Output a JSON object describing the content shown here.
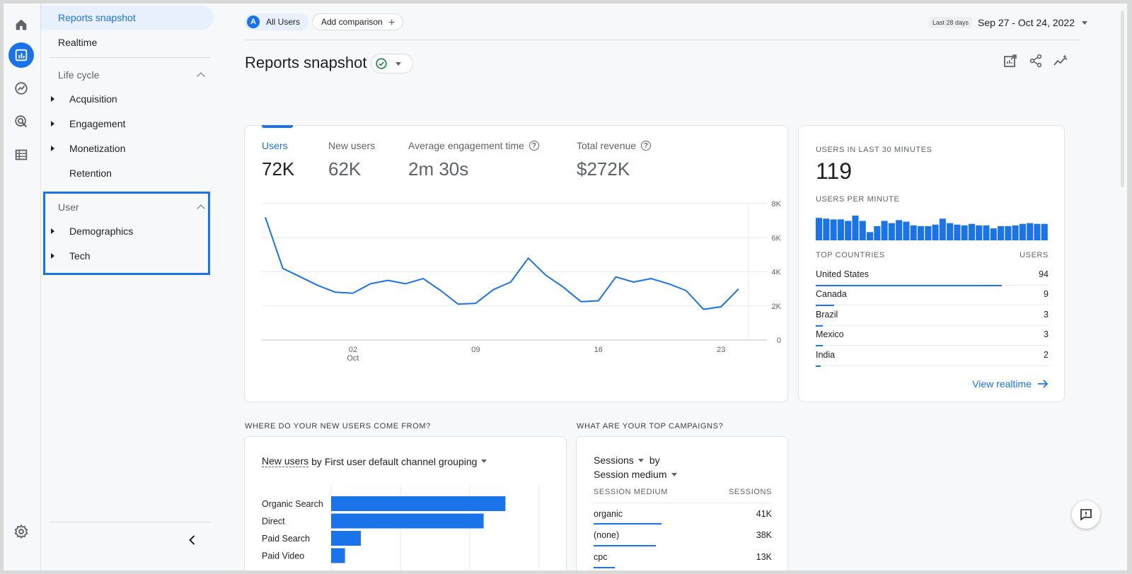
{
  "nav": {
    "reports_snapshot": "Reports snapshot",
    "realtime": "Realtime",
    "lifecycle_group": "Life cycle",
    "lifecycle_items": [
      "Acquisition",
      "Engagement",
      "Monetization",
      "Retention"
    ],
    "user_group": "User",
    "user_items": [
      "Demographics",
      "Tech"
    ]
  },
  "header": {
    "all_users": "All Users",
    "avatar_letter": "A",
    "add_comparison": "Add comparison",
    "date_badge": "Last 28 days",
    "date_range": "Sep 27 - Oct 24, 2022",
    "page_title": "Reports snapshot"
  },
  "metrics": [
    {
      "label": "Users",
      "value": "72K",
      "selected": true
    },
    {
      "label": "New users",
      "value": "62K"
    },
    {
      "label": "Average engagement time",
      "value": "2m 30s",
      "help": true
    },
    {
      "label": "Total revenue",
      "value": "$272K",
      "help": true
    }
  ],
  "chart_data": {
    "type": "line",
    "series": [
      {
        "values": [
          7200,
          4200,
          3700,
          3200,
          2800,
          2750,
          3300,
          3500,
          3300,
          3600,
          2900,
          2100,
          2150,
          2950,
          3400,
          4800,
          3800,
          3100,
          2250,
          2300,
          3700,
          3400,
          3600,
          3300,
          2900,
          1800,
          1950,
          3000
        ]
      }
    ],
    "x_ticks": [
      {
        "index": 5,
        "label": "02",
        "sublabel": "Oct"
      },
      {
        "index": 12,
        "label": "09"
      },
      {
        "index": 19,
        "label": "16"
      },
      {
        "index": 26,
        "label": "23"
      }
    ],
    "y_ticks": [
      "8K",
      "6K",
      "4K",
      "2K",
      "0"
    ],
    "ylim": [
      0,
      8000
    ],
    "color": "#1a73e8"
  },
  "realtime": {
    "users_label": "USERS IN LAST 30 MINUTES",
    "users_value": "119",
    "per_minute_label": "USERS PER MINUTE",
    "per_minute": [
      30,
      29,
      28,
      28,
      26,
      33,
      26,
      11,
      19,
      26,
      23,
      27,
      25,
      20,
      19,
      19,
      21,
      29,
      23,
      21,
      20,
      22,
      20,
      20,
      16,
      19,
      19,
      20,
      22,
      23,
      22,
      22
    ],
    "countries_label": "TOP COUNTRIES",
    "users_col_label": "USERS",
    "countries": [
      {
        "name": "United States",
        "value": "94",
        "share": 0.8
      },
      {
        "name": "Canada",
        "value": "9",
        "share": 0.08
      },
      {
        "name": "Brazil",
        "value": "3",
        "share": 0.03
      },
      {
        "name": "Mexico",
        "value": "3",
        "share": 0.03
      },
      {
        "name": "India",
        "value": "2",
        "share": 0.02
      }
    ],
    "view_realtime": "View realtime"
  },
  "new_users_section": {
    "label": "WHERE DO YOUR NEW USERS COME FROM?",
    "metric": "New users",
    "by": "by First user default channel grouping",
    "bars": [
      {
        "name": "Organic Search",
        "value": 0.88
      },
      {
        "name": "Direct",
        "value": 0.77
      },
      {
        "name": "Paid Search",
        "value": 0.15
      },
      {
        "name": "Paid Video",
        "value": 0.07
      }
    ]
  },
  "campaigns_section": {
    "label": "WHAT ARE YOUR TOP CAMPAIGNS?",
    "metric": "Sessions",
    "by": "by",
    "dimension": "Session medium",
    "col_left": "SESSION MEDIUM",
    "col_right": "SESSIONS",
    "rows": [
      {
        "name": "organic",
        "value": "41K",
        "share": 0.38
      },
      {
        "name": "(none)",
        "value": "38K",
        "share": 0.35
      },
      {
        "name": "cpc",
        "value": "13K",
        "share": 0.12
      }
    ]
  }
}
